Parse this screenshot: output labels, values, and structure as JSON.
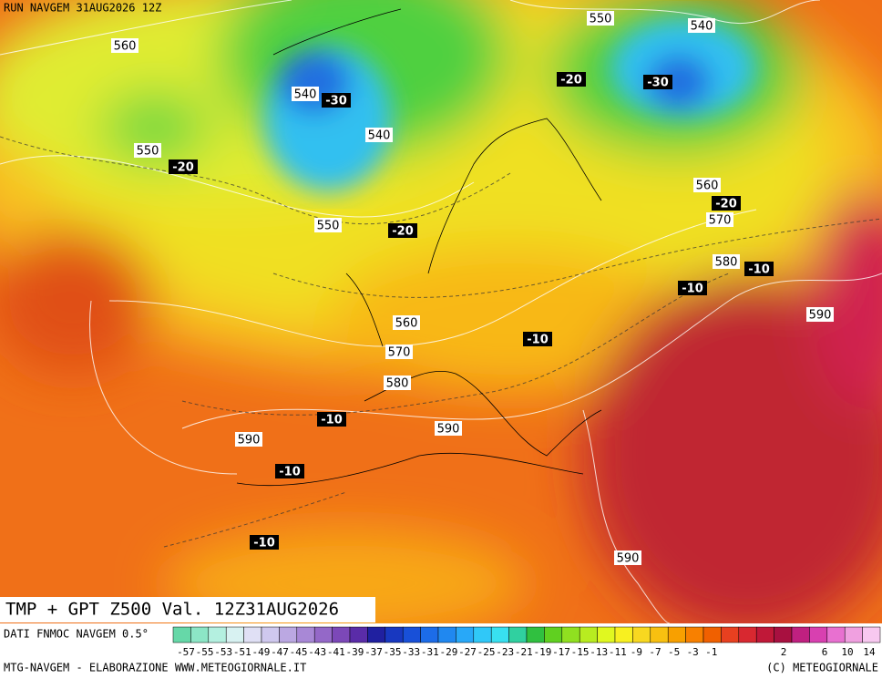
{
  "header": {
    "run": "RUN NAVGEM 31AUG2026 12Z",
    "title": "TMP + GPT Z500 Val. 12Z31AUG2026",
    "source": "DATI FNMOC NAVGEM 0.5°"
  },
  "map": {
    "height_labels": [
      560,
      540,
      540,
      550,
      550,
      550,
      540,
      560,
      570,
      580,
      590,
      560,
      570,
      580,
      590,
      590,
      590
    ],
    "temp_labels": [
      -30,
      -20,
      -20,
      -30,
      -20,
      -20,
      -10,
      -10,
      -10,
      -10,
      -10,
      -10
    ]
  },
  "legend": {
    "labels": [
      -57,
      -55,
      -53,
      -51,
      -49,
      -47,
      -45,
      -43,
      -41,
      -39,
      -37,
      -35,
      -33,
      -31,
      -29,
      -27,
      -25,
      -23,
      -21,
      -19,
      -17,
      -15,
      -13,
      -11,
      -9,
      -7,
      -5,
      -3,
      -1,
      2,
      6,
      10,
      14
    ],
    "colors": [
      "#66d8a8",
      "#8ce6c6",
      "#b4f0e0",
      "#d8f2f2",
      "#e0e0f5",
      "#cfc8ee",
      "#bba8e2",
      "#a888d6",
      "#9468c8",
      "#7c48b8",
      "#5a2ca8",
      "#2020a0",
      "#1838c0",
      "#1850d8",
      "#1c6ce8",
      "#2088f0",
      "#28a8f8",
      "#30c8f8",
      "#38e0f0",
      "#30d0a0",
      "#30c040",
      "#60d020",
      "#90e020",
      "#b8ec20",
      "#e0f820",
      "#f8f020",
      "#f8d820",
      "#f8c010",
      "#f8a000",
      "#f88000",
      "#f06000",
      "#e84020",
      "#d82830",
      "#c01838",
      "#a81040",
      "#c02080",
      "#d840b0",
      "#e870d0",
      "#f0a0e0",
      "#f8c8f0"
    ]
  },
  "footer": {
    "left": "MTG-NAVGEM - ELABORAZIONE WWW.METEOGIORNALE.IT",
    "right": "(C) METEOGIORNALE"
  }
}
